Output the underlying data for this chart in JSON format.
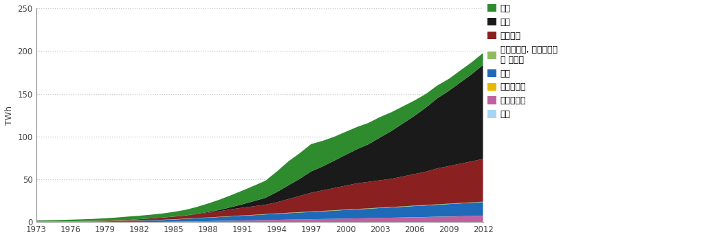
{
  "years": [
    1973,
    1974,
    1975,
    1976,
    1977,
    1978,
    1979,
    1980,
    1981,
    1982,
    1983,
    1984,
    1985,
    1986,
    1987,
    1988,
    1989,
    1990,
    1991,
    1992,
    1993,
    1994,
    1995,
    1996,
    1997,
    1998,
    1999,
    2000,
    2001,
    2002,
    2003,
    2004,
    2005,
    2006,
    2007,
    2008,
    2009,
    2010,
    2011,
    2012
  ],
  "oil": [
    1.2,
    1.4,
    1.6,
    1.8,
    2.0,
    2.3,
    2.7,
    3.2,
    3.8,
    4.0,
    4.3,
    4.8,
    5.5,
    6.5,
    8.0,
    10.0,
    12.0,
    14.0,
    16.0,
    18.0,
    20.0,
    24.0,
    28.0,
    30.0,
    32.0,
    30.0,
    28.0,
    27.0,
    26.0,
    25.0,
    24.0,
    22.0,
    20.0,
    18.0,
    16.0,
    15.0,
    14.0,
    14.0,
    14.0,
    14.0
  ],
  "coal": [
    0.0,
    0.0,
    0.0,
    0.0,
    0.0,
    0.0,
    0.0,
    0.0,
    0.0,
    0.0,
    0.0,
    0.0,
    0.1,
    0.2,
    0.4,
    0.8,
    1.5,
    2.5,
    4.0,
    6.0,
    8.0,
    12.0,
    16.0,
    20.0,
    25.0,
    28.0,
    32.0,
    36.0,
    40.0,
    44.0,
    50.0,
    56.0,
    62.0,
    68.0,
    75.0,
    82.0,
    88.0,
    95.0,
    102.0,
    110.0
  ],
  "gas": [
    0.0,
    0.0,
    0.0,
    0.1,
    0.2,
    0.3,
    0.5,
    0.7,
    1.0,
    1.5,
    2.0,
    2.5,
    3.0,
    3.5,
    4.5,
    5.5,
    6.5,
    8.0,
    9.0,
    10.0,
    11.0,
    13.0,
    16.0,
    19.0,
    22.0,
    24.0,
    26.0,
    28.0,
    30.0,
    31.0,
    32.0,
    33.0,
    35.0,
    37.0,
    39.0,
    42.0,
    44.0,
    46.0,
    48.0,
    50.0
  ],
  "bio": [
    0.3,
    0.3,
    0.3,
    0.3,
    0.3,
    0.3,
    0.3,
    0.3,
    0.3,
    0.3,
    0.3,
    0.3,
    0.3,
    0.3,
    0.3,
    0.3,
    0.3,
    0.3,
    0.4,
    0.4,
    0.4,
    0.5,
    0.5,
    0.5,
    0.5,
    0.5,
    0.5,
    0.5,
    0.5,
    0.5,
    0.5,
    0.5,
    0.5,
    0.5,
    0.5,
    0.5,
    0.5,
    0.5,
    0.5,
    0.5
  ],
  "hydro": [
    0.3,
    0.3,
    0.4,
    0.5,
    0.6,
    0.7,
    0.8,
    1.0,
    1.2,
    1.5,
    1.8,
    2.1,
    2.5,
    3.0,
    3.5,
    4.0,
    4.5,
    5.0,
    5.5,
    6.0,
    6.5,
    7.0,
    7.5,
    8.0,
    8.5,
    9.0,
    9.5,
    10.0,
    10.5,
    11.0,
    11.5,
    12.0,
    12.5,
    13.0,
    13.5,
    14.0,
    14.5,
    15.0,
    15.5,
    16.0
  ],
  "solar": [
    0.0,
    0.0,
    0.0,
    0.0,
    0.0,
    0.0,
    0.0,
    0.0,
    0.0,
    0.0,
    0.0,
    0.0,
    0.0,
    0.0,
    0.0,
    0.0,
    0.0,
    0.0,
    0.0,
    0.0,
    0.0,
    0.0,
    0.0,
    0.0,
    0.0,
    0.0,
    0.0,
    0.0,
    0.0,
    0.0,
    0.0,
    0.0,
    0.1,
    0.1,
    0.1,
    0.1,
    0.1,
    0.1,
    0.1,
    0.1
  ],
  "geo": [
    0.0,
    0.0,
    0.0,
    0.0,
    0.0,
    0.0,
    0.0,
    0.0,
    0.0,
    0.0,
    0.1,
    0.2,
    0.4,
    0.6,
    0.8,
    1.0,
    1.3,
    1.5,
    1.8,
    2.0,
    2.3,
    2.5,
    2.8,
    3.0,
    3.2,
    3.5,
    3.7,
    4.0,
    4.2,
    4.5,
    4.8,
    5.0,
    5.2,
    5.5,
    5.7,
    6.0,
    6.2,
    6.5,
    6.7,
    7.0
  ],
  "wind": [
    0.0,
    0.0,
    0.0,
    0.0,
    0.0,
    0.0,
    0.0,
    0.0,
    0.0,
    0.0,
    0.0,
    0.0,
    0.0,
    0.0,
    0.0,
    0.0,
    0.0,
    0.0,
    0.0,
    0.0,
    0.0,
    0.0,
    0.0,
    0.0,
    0.0,
    0.0,
    0.0,
    0.0,
    0.0,
    0.0,
    0.0,
    0.0,
    0.0,
    0.0,
    0.0,
    0.1,
    0.1,
    0.1,
    0.1,
    0.2
  ],
  "colors": {
    "oil": "#2e8b2e",
    "coal": "#1a1a1a",
    "gas": "#8b2020",
    "bio": "#8fbc5f",
    "hydro": "#1e6ab8",
    "solar": "#e8b800",
    "geo": "#c060a0",
    "wind": "#a8d4f5"
  },
  "labels": {
    "oil": "석유",
    "coal": "석탄",
    "gas": "천연가스",
    "bio": "바이오연료, 바이오매스\n및 폐기물",
    "hydro": "수력",
    "solar": "태양에너지",
    "geo": "지열에너지",
    "wind": "풍력"
  },
  "ylabel": "TWh",
  "ylim": [
    0,
    250
  ],
  "yticks": [
    0,
    50,
    100,
    150,
    200,
    250
  ],
  "xticks": [
    1973,
    1976,
    1979,
    1982,
    1985,
    1988,
    1991,
    1994,
    1997,
    2000,
    2003,
    2006,
    2009,
    2012
  ],
  "bg_color": "#ffffff",
  "grid_color": "#c8c8c8"
}
